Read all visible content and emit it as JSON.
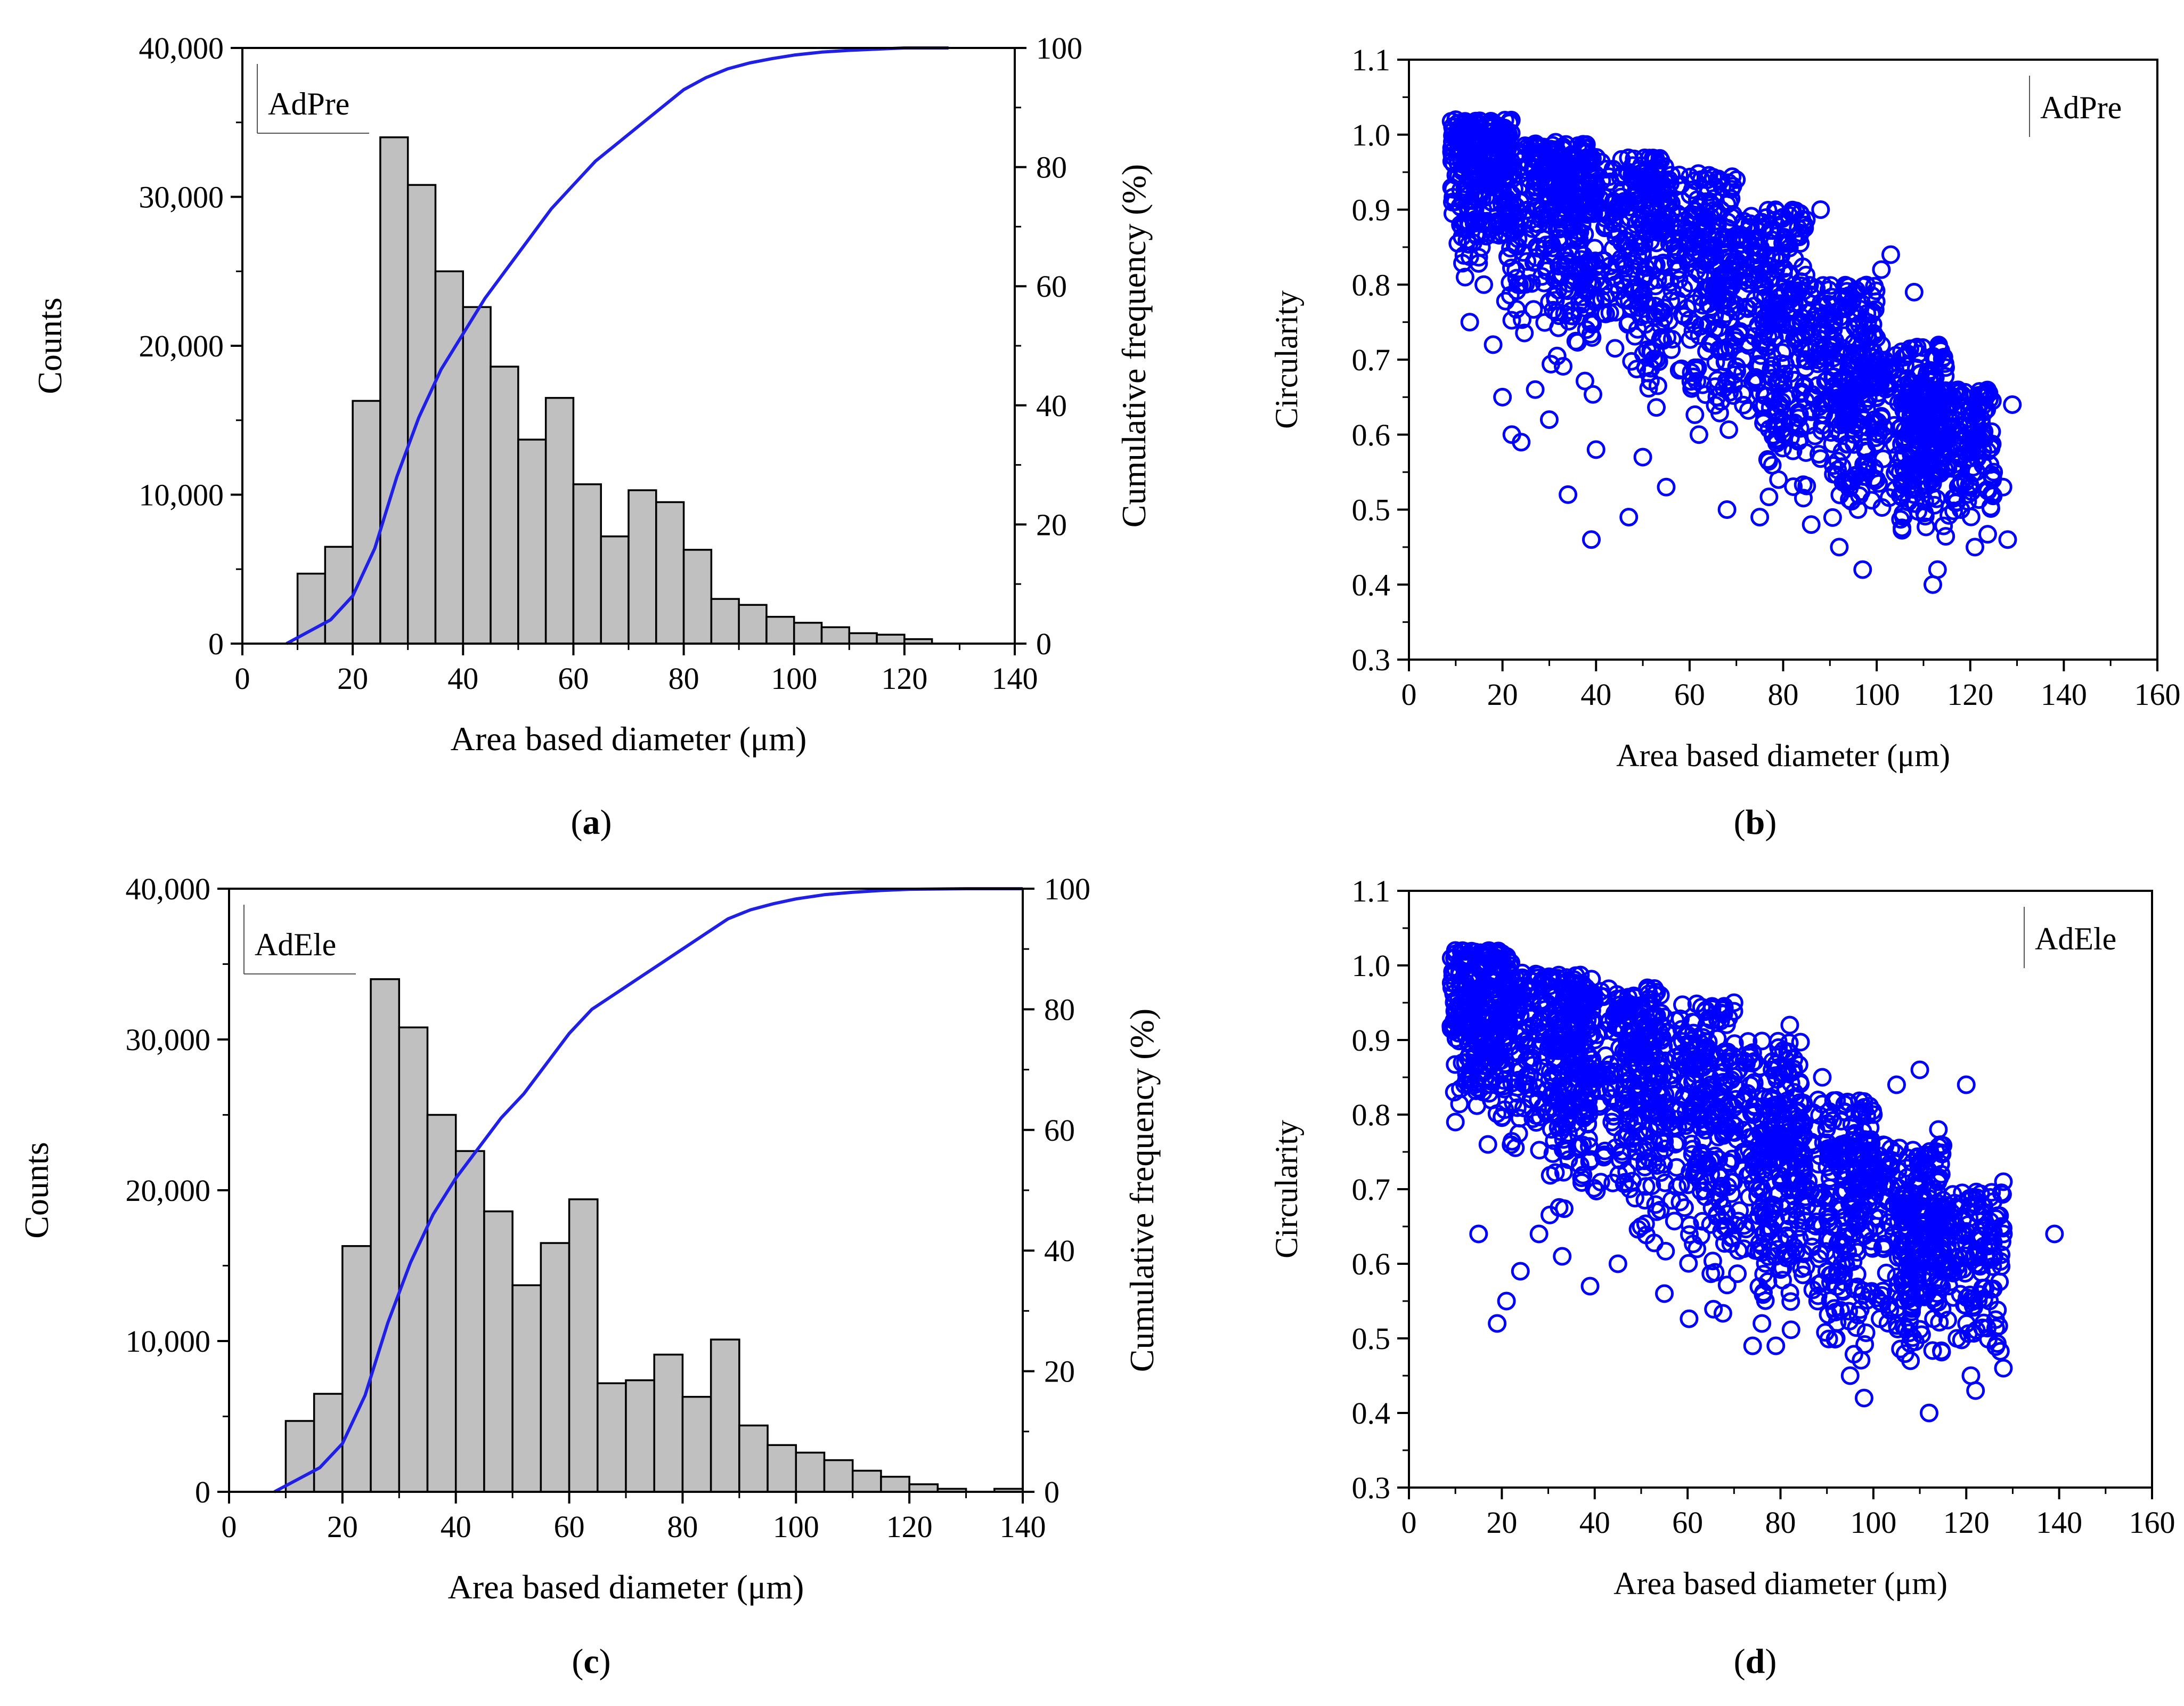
{
  "colors": {
    "bar_fill": "#c0c0c0",
    "bar_stroke": "#000000",
    "line": "#1f1fe6",
    "scatter": "#0000ff",
    "axis": "#000000"
  },
  "chart_data": [
    {
      "id": "a",
      "panel_label": "a",
      "type": "bar",
      "legend": "AdPre",
      "xlabel": "Area based diameter (μm)",
      "ylabel": "Counts",
      "y2label": "Cumulative frequency (%)",
      "xlim": [
        0,
        140
      ],
      "ylim": [
        0,
        40000
      ],
      "y2lim": [
        0,
        100
      ],
      "xticks": [
        0,
        20,
        40,
        60,
        80,
        100,
        120,
        140
      ],
      "yticks": [
        0,
        10000,
        20000,
        30000,
        40000
      ],
      "yticklabels": [
        "0",
        "10,000",
        "20,000",
        "30,000",
        "40,000"
      ],
      "y2ticks": [
        0,
        20,
        40,
        60,
        80,
        100
      ],
      "bins": [
        [
          10,
          15
        ],
        [
          15,
          20
        ],
        [
          20,
          25
        ],
        [
          25,
          30
        ],
        [
          30,
          35
        ],
        [
          35,
          40
        ],
        [
          40,
          45
        ],
        [
          45,
          50
        ],
        [
          50,
          55
        ],
        [
          55,
          60
        ],
        [
          60,
          65
        ],
        [
          65,
          70
        ],
        [
          70,
          75
        ],
        [
          75,
          80
        ],
        [
          80,
          85
        ],
        [
          85,
          90
        ],
        [
          90,
          95
        ],
        [
          95,
          100
        ],
        [
          100,
          105
        ],
        [
          105,
          110
        ],
        [
          110,
          115
        ],
        [
          115,
          120
        ],
        [
          120,
          125
        ]
      ],
      "values": [
        4700,
        6500,
        16300,
        34000,
        30800,
        25000,
        22600,
        18600,
        13700,
        16500,
        10700,
        7200,
        10300,
        9500,
        6300,
        3000,
        2600,
        1800,
        1400,
        1100,
        700,
        600,
        300
      ],
      "cumulative": {
        "x": [
          8,
          12,
          16,
          20,
          24,
          28,
          32,
          36,
          40,
          44,
          48,
          52,
          56,
          60,
          64,
          68,
          72,
          76,
          80,
          84,
          88,
          92,
          96,
          100,
          105,
          110,
          115,
          120,
          128
        ],
        "y": [
          0,
          2,
          4,
          8,
          16,
          28,
          38,
          46,
          52,
          58,
          63,
          68,
          73,
          77,
          81,
          84,
          87,
          90,
          93,
          95,
          96.5,
          97.5,
          98.2,
          98.8,
          99.3,
          99.6,
          99.8,
          100,
          100
        ]
      }
    },
    {
      "id": "b",
      "panel_label": "b",
      "type": "scatter",
      "legend": "AdPre",
      "xlabel": "Area based diameter (μm)",
      "ylabel": "Circularity",
      "xlim": [
        0,
        160
      ],
      "ylim": [
        0.3,
        1.1
      ],
      "xticks": [
        0,
        20,
        40,
        60,
        80,
        100,
        120,
        140,
        160
      ],
      "yticks": [
        0.3,
        0.4,
        0.5,
        0.6,
        0.7,
        0.8,
        0.9,
        1.0,
        1.1
      ],
      "yticklabels": [
        "0.3",
        "0.4",
        "0.5",
        "0.6",
        "0.7",
        "0.8",
        "0.9",
        "1.0",
        "1.1"
      ],
      "points": [
        [
          10,
          1.02
        ],
        [
          11,
          0.88
        ],
        [
          12,
          0.81
        ],
        [
          13,
          0.75
        ],
        [
          16,
          0.8
        ],
        [
          18,
          0.72
        ],
        [
          20,
          0.65
        ],
        [
          22,
          0.6
        ],
        [
          24,
          0.59
        ],
        [
          27,
          0.66
        ],
        [
          30,
          0.62
        ],
        [
          34,
          0.52
        ],
        [
          39,
          0.46
        ],
        [
          40,
          0.58
        ],
        [
          47,
          0.49
        ],
        [
          50,
          0.57
        ],
        [
          55,
          0.53
        ],
        [
          62,
          0.6
        ],
        [
          68,
          0.5
        ],
        [
          70,
          0.94
        ],
        [
          75,
          0.49
        ],
        [
          79,
          0.54
        ],
        [
          80,
          0.89
        ],
        [
          86,
          0.48
        ],
        [
          88,
          0.9
        ],
        [
          92,
          0.45
        ],
        [
          96,
          0.5
        ],
        [
          97,
          0.42
        ],
        [
          101,
          0.82
        ],
        [
          103,
          0.84
        ],
        [
          105,
          0.55
        ],
        [
          108,
          0.79
        ],
        [
          112,
          0.4
        ],
        [
          113,
          0.42
        ],
        [
          115,
          0.6
        ],
        [
          118,
          0.5
        ],
        [
          121,
          0.45
        ],
        [
          123,
          0.63
        ],
        [
          125,
          0.55
        ],
        [
          127,
          0.53
        ],
        [
          128,
          0.46
        ],
        [
          129,
          0.64
        ],
        [
          14,
          0.95
        ],
        [
          22,
          0.92
        ],
        [
          35,
          0.88
        ],
        [
          45,
          0.9
        ],
        [
          60,
          0.86
        ],
        [
          66,
          0.88
        ],
        [
          74,
          0.78
        ],
        [
          85,
          0.74
        ],
        [
          95,
          0.7
        ],
        [
          100,
          0.65
        ],
        [
          110,
          0.62
        ],
        [
          120,
          0.58
        ]
      ],
      "cluster": [
        [
          9,
          22,
          0.82,
          1.02
        ],
        [
          20,
          40,
          0.72,
          0.99
        ],
        [
          30,
          55,
          0.64,
          0.97
        ],
        [
          45,
          70,
          0.6,
          0.95
        ],
        [
          60,
          85,
          0.55,
          0.9
        ],
        [
          75,
          100,
          0.5,
          0.8
        ],
        [
          90,
          115,
          0.46,
          0.72
        ],
        [
          105,
          125,
          0.46,
          0.66
        ]
      ]
    },
    {
      "id": "c",
      "panel_label": "c",
      "type": "bar",
      "legend": "AdEle",
      "xlabel": "Area based diameter (μm)",
      "ylabel": "Counts",
      "y2label": "Cumulative frequency (%)",
      "xlim": [
        0,
        140
      ],
      "ylim": [
        0,
        40000
      ],
      "y2lim": [
        0,
        100
      ],
      "xticks": [
        0,
        20,
        40,
        60,
        80,
        100,
        120,
        140
      ],
      "yticks": [
        0,
        10000,
        20000,
        30000,
        40000
      ],
      "yticklabels": [
        "0",
        "10,000",
        "20,000",
        "30,000",
        "40,000"
      ],
      "y2ticks": [
        0,
        20,
        40,
        60,
        80,
        100
      ],
      "bins": [
        [
          10,
          15
        ],
        [
          15,
          20
        ],
        [
          20,
          25
        ],
        [
          25,
          30
        ],
        [
          30,
          35
        ],
        [
          35,
          40
        ],
        [
          40,
          45
        ],
        [
          45,
          50
        ],
        [
          50,
          55
        ],
        [
          55,
          60
        ],
        [
          60,
          65
        ],
        [
          65,
          70
        ],
        [
          70,
          75
        ],
        [
          75,
          80
        ],
        [
          80,
          85
        ],
        [
          85,
          90
        ],
        [
          90,
          95
        ],
        [
          95,
          100
        ],
        [
          100,
          105
        ],
        [
          105,
          110
        ],
        [
          110,
          115
        ],
        [
          115,
          120
        ],
        [
          120,
          125
        ],
        [
          125,
          130
        ],
        [
          135,
          140
        ]
      ],
      "values": [
        4700,
        6500,
        16300,
        34000,
        30800,
        25000,
        22600,
        18600,
        13700,
        16500,
        19400,
        7200,
        7400,
        9100,
        6300,
        10100,
        4400,
        3100,
        2600,
        2100,
        1400,
        1000,
        500,
        200,
        200
      ],
      "cumulative": {
        "x": [
          8,
          12,
          16,
          20,
          24,
          28,
          32,
          36,
          40,
          44,
          48,
          52,
          56,
          60,
          64,
          68,
          72,
          76,
          80,
          84,
          88,
          92,
          96,
          100,
          105,
          110,
          115,
          120,
          130,
          140
        ],
        "y": [
          0,
          2,
          4,
          8,
          16,
          28,
          38,
          46,
          52,
          57,
          62,
          66,
          71,
          76,
          80,
          82.5,
          85,
          87.5,
          90,
          92.5,
          95,
          96.5,
          97.5,
          98.3,
          99,
          99.4,
          99.7,
          99.9,
          100,
          100
        ]
      }
    },
    {
      "id": "d",
      "panel_label": "d",
      "type": "scatter",
      "legend": "AdEle",
      "xlabel": "Area based diameter (μm)",
      "ylabel": "Circularity",
      "xlim": [
        0,
        160
      ],
      "ylim": [
        0.3,
        1.1
      ],
      "xticks": [
        0,
        20,
        40,
        60,
        80,
        100,
        120,
        140,
        160
      ],
      "yticks": [
        0.3,
        0.4,
        0.5,
        0.6,
        0.7,
        0.8,
        0.9,
        1.0,
        1.1
      ],
      "yticklabels": [
        "0.3",
        "0.4",
        "0.5",
        "0.6",
        "0.7",
        "0.8",
        "0.9",
        "1.0",
        "1.1"
      ],
      "points": [
        [
          10,
          1.02
        ],
        [
          10,
          0.79
        ],
        [
          12,
          0.84
        ],
        [
          15,
          0.64
        ],
        [
          17,
          0.76
        ],
        [
          19,
          0.52
        ],
        [
          21,
          0.55
        ],
        [
          24,
          0.59
        ],
        [
          28,
          0.64
        ],
        [
          33,
          0.61
        ],
        [
          39,
          0.57
        ],
        [
          45,
          0.6
        ],
        [
          50,
          0.65
        ],
        [
          55,
          0.56
        ],
        [
          62,
          0.62
        ],
        [
          70,
          0.95
        ],
        [
          74,
          0.49
        ],
        [
          76,
          0.52
        ],
        [
          79,
          0.49
        ],
        [
          82,
          0.92
        ],
        [
          88,
          0.55
        ],
        [
          89,
          0.85
        ],
        [
          92,
          0.5
        ],
        [
          95,
          0.45
        ],
        [
          98,
          0.42
        ],
        [
          100,
          0.8
        ],
        [
          105,
          0.84
        ],
        [
          108,
          0.47
        ],
        [
          110,
          0.86
        ],
        [
          112,
          0.4
        ],
        [
          114,
          0.78
        ],
        [
          118,
          0.5
        ],
        [
          120,
          0.84
        ],
        [
          121,
          0.45
        ],
        [
          122,
          0.43
        ],
        [
          125,
          0.55
        ],
        [
          126,
          0.61
        ],
        [
          128,
          0.71
        ],
        [
          128,
          0.64
        ],
        [
          128,
          0.46
        ],
        [
          139,
          0.64
        ],
        [
          16,
          0.96
        ],
        [
          26,
          0.93
        ],
        [
          40,
          0.9
        ],
        [
          52,
          0.88
        ],
        [
          65,
          0.84
        ],
        [
          72,
          0.75
        ],
        [
          85,
          0.72
        ],
        [
          96,
          0.68
        ],
        [
          104,
          0.65
        ],
        [
          115,
          0.6
        ]
      ],
      "cluster": [
        [
          9,
          22,
          0.8,
          1.02
        ],
        [
          20,
          40,
          0.7,
          0.99
        ],
        [
          30,
          55,
          0.63,
          0.97
        ],
        [
          45,
          70,
          0.58,
          0.95
        ],
        [
          60,
          85,
          0.52,
          0.9
        ],
        [
          75,
          100,
          0.48,
          0.82
        ],
        [
          90,
          115,
          0.45,
          0.76
        ],
        [
          105,
          128,
          0.45,
          0.7
        ]
      ]
    }
  ]
}
